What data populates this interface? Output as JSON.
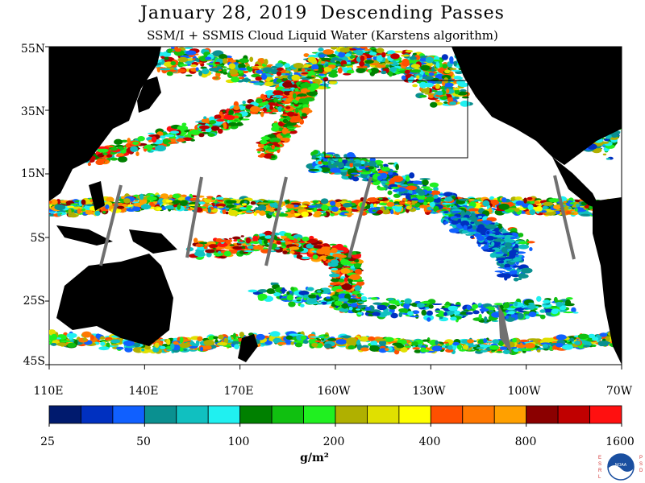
{
  "title": "January 28, 2019  Descending Passes",
  "subtitle": "SSM/I + SSMIS Cloud Liquid Water (Karstens algorithm)",
  "lat_labels": [
    "55N",
    "35N",
    "15N",
    "5S",
    "25S",
    "45S"
  ],
  "lon_labels": [
    "110E",
    "140E",
    "170E",
    "160W",
    "130W",
    "100W",
    "70W"
  ],
  "colorbar": {
    "colors": [
      "#001a6e",
      "#0030c0",
      "#1060ff",
      "#0a9090",
      "#10c0c0",
      "#20f0f0",
      "#008000",
      "#10c010",
      "#20f020",
      "#b0b000",
      "#e0e000",
      "#ffff00",
      "#ff5000",
      "#ff7800",
      "#ffa000",
      "#8b0000",
      "#c00000",
      "#ff1010"
    ],
    "tick_labels": [
      "25",
      "50",
      "100",
      "200",
      "400",
      "800",
      "1600"
    ],
    "unit": "g/m²"
  },
  "logo": {
    "name": "noaa-logo",
    "left_letters": "ESRL",
    "right_letters": "PSD"
  }
}
